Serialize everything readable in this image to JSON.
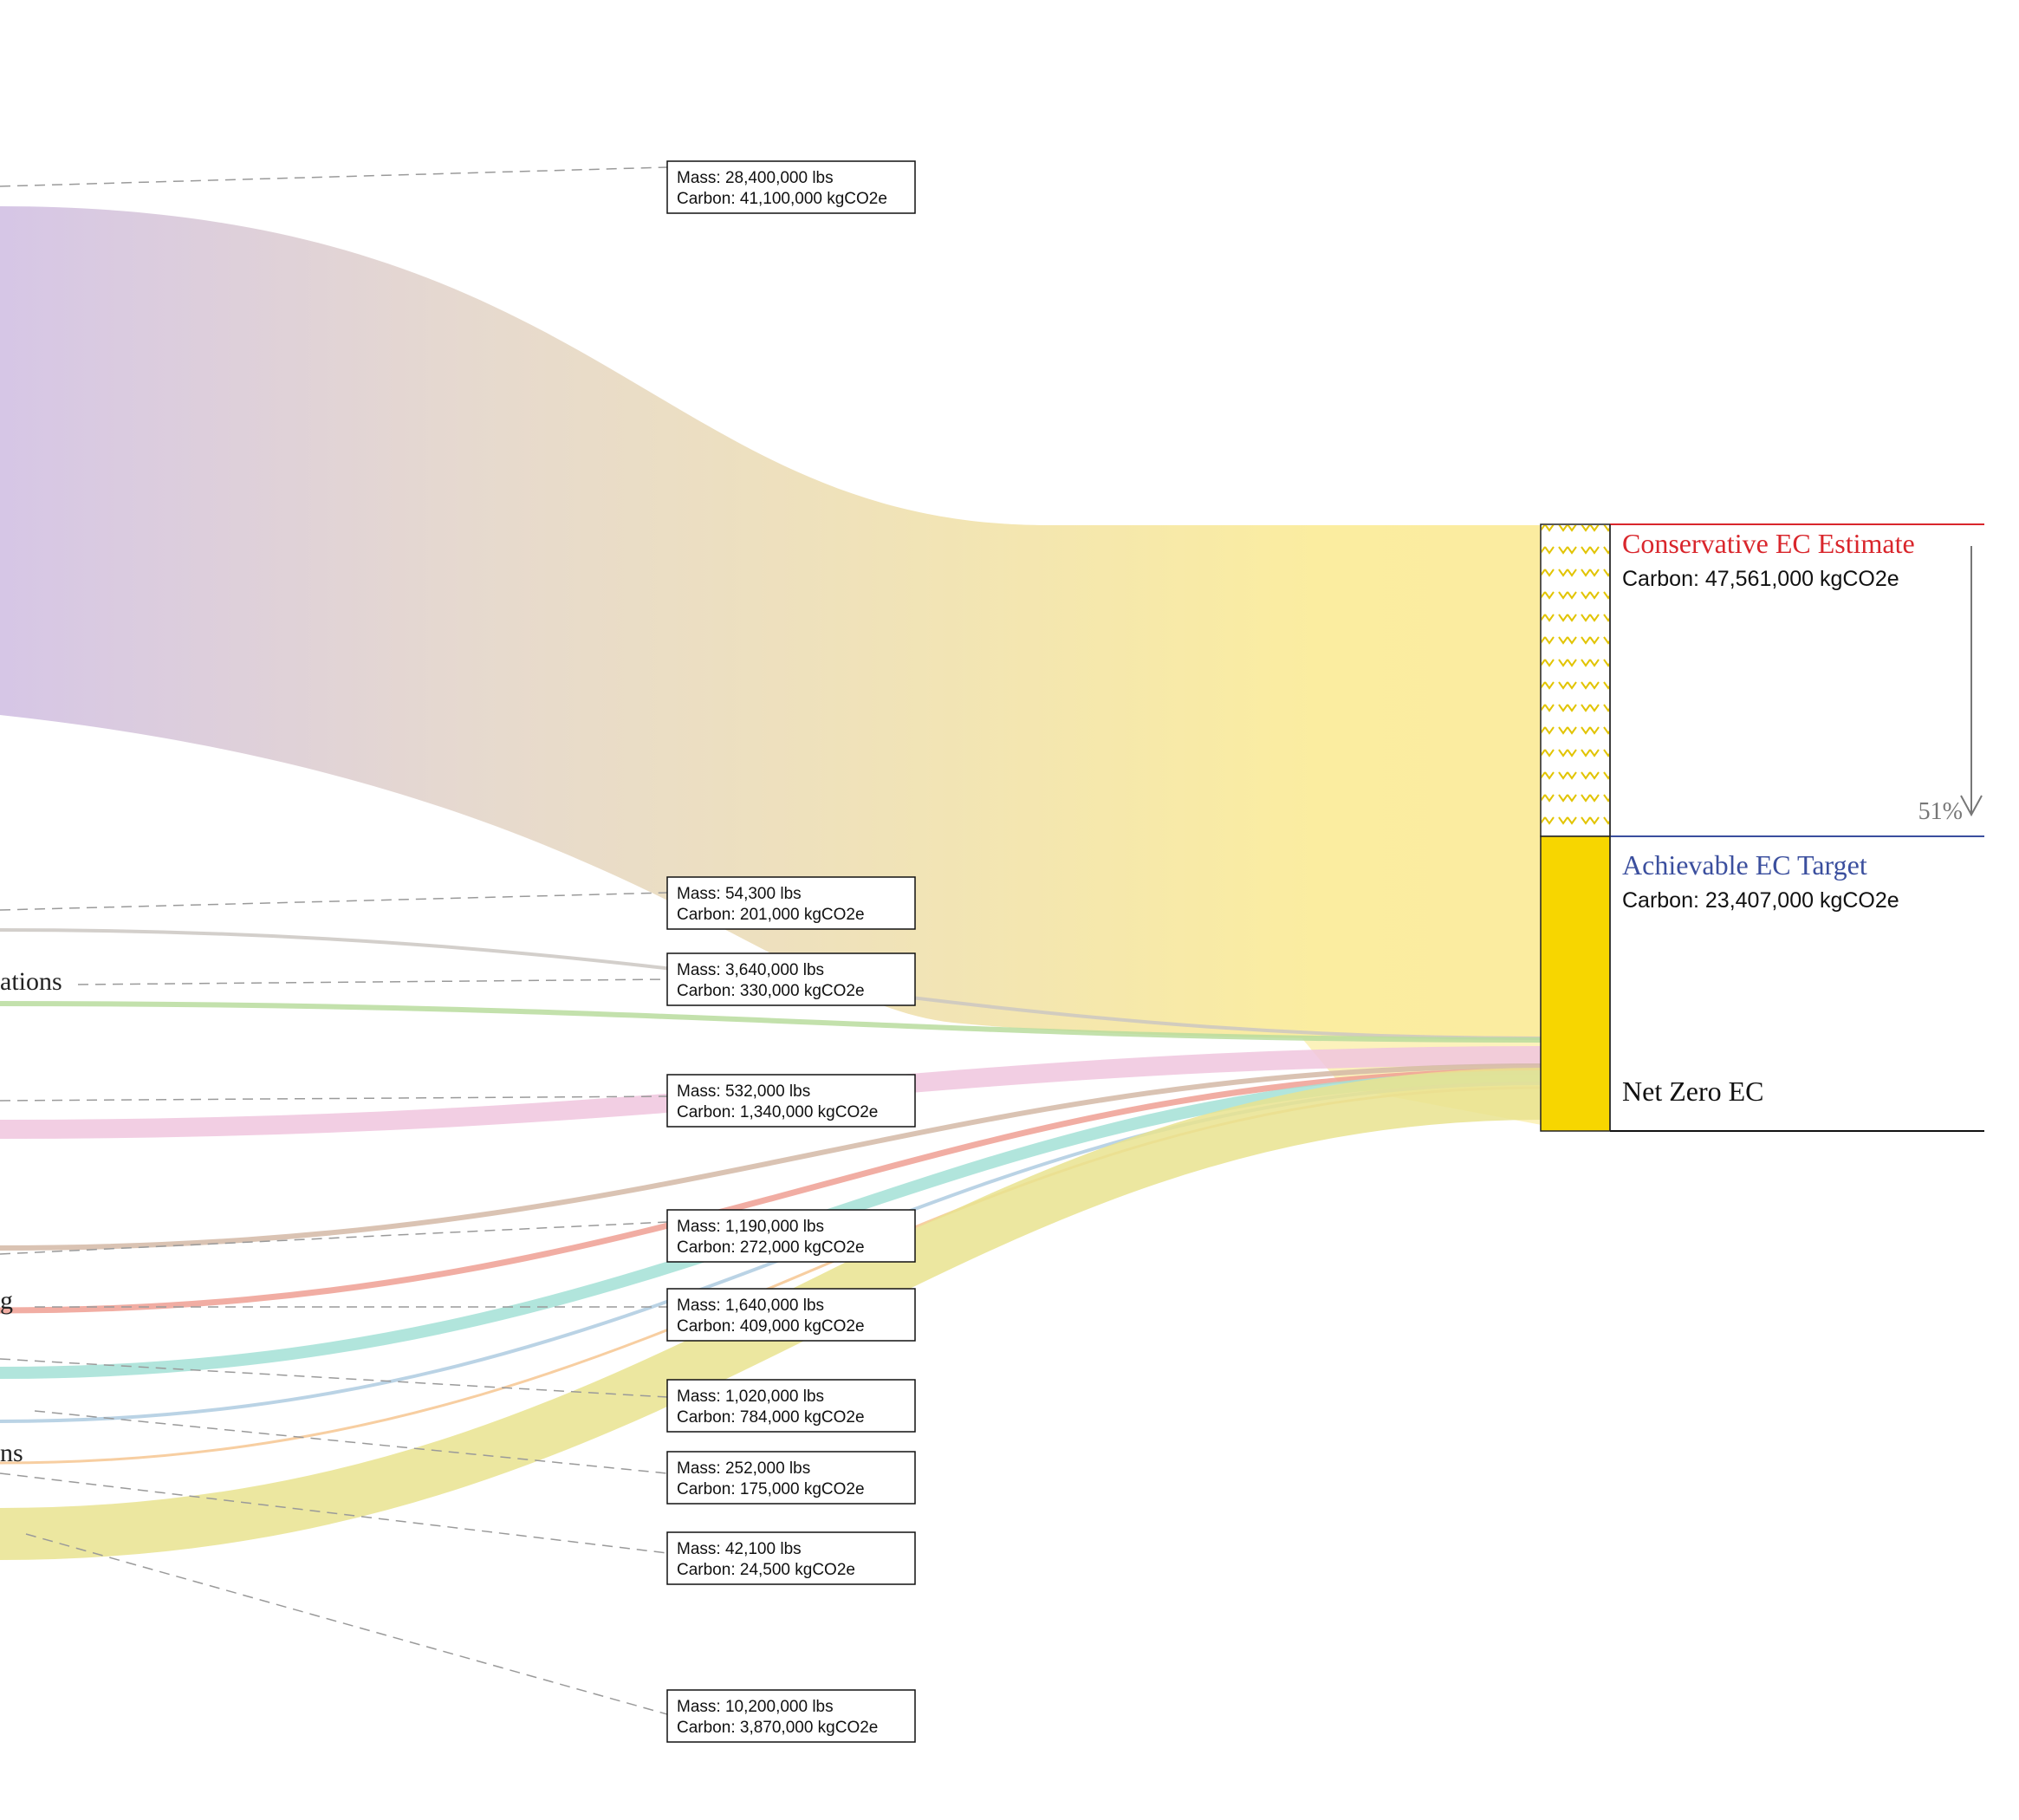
{
  "left_labels": [
    {
      "id": "cut-label-1",
      "text": "ations"
    },
    {
      "id": "cut-label-2",
      "text": "g"
    },
    {
      "id": "cut-label-3",
      "text": "ns"
    }
  ],
  "flows": [
    {
      "name": "flow-main",
      "color": "#d6c6e6",
      "thickness": 590,
      "mass": "Mass: 28,400,000 lbs",
      "carbon": "Carbon: 41,100,000 kgCO2e"
    },
    {
      "name": "flow-2",
      "color": "#cbc7c2",
      "thickness": 4,
      "mass": "Mass: 54,300 lbs",
      "carbon": "Carbon: 201,000 kgCO2e"
    },
    {
      "name": "flow-3",
      "color": "#b8dc9e",
      "thickness": 6,
      "mass": "Mass: 3,640,000 lbs",
      "carbon": "Carbon: 330,000 kgCO2e"
    },
    {
      "name": "flow-4",
      "color": "#f0c5de",
      "thickness": 22,
      "mass": "Mass: 532,000 lbs",
      "carbon": "Carbon: 1,340,000 kgCO2e"
    },
    {
      "name": "flow-5",
      "color": "#d4b8a6",
      "thickness": 6,
      "mass": "Mass: 1,190,000 lbs",
      "carbon": "Carbon: 272,000 kgCO2e"
    },
    {
      "name": "flow-6",
      "color": "#ef9f93",
      "thickness": 7,
      "mass": "Mass: 1,640,000 lbs",
      "carbon": "Carbon: 409,000 kgCO2e"
    },
    {
      "name": "flow-7",
      "color": "#a3e0d6",
      "thickness": 14,
      "mass": "Mass: 1,020,000 lbs",
      "carbon": "Carbon: 784,000 kgCO2e"
    },
    {
      "name": "flow-8",
      "color": "#aecbe0",
      "thickness": 4,
      "mass": "Mass: 252,000 lbs",
      "carbon": "Carbon: 175,000 kgCO2e"
    },
    {
      "name": "flow-9",
      "color": "#f6c590",
      "thickness": 3,
      "mass": "Mass: 42,100 lbs",
      "carbon": "Carbon: 24,500 kgCO2e"
    },
    {
      "name": "flow-10",
      "color": "#e9e38f",
      "thickness": 60,
      "mass": "Mass: 10,200,000 lbs",
      "carbon": "Carbon: 3,870,000 kgCO2e"
    }
  ],
  "targets": {
    "conservative": {
      "title": "Conservative EC Estimate",
      "carbon": "Carbon: 47,561,000 kgCO2e",
      "color": "#d9262c"
    },
    "achievable": {
      "title": "Achievable EC Target",
      "carbon": "Carbon: 23,407,000 kgCO2e",
      "color": "#3b4f9e"
    },
    "net_zero": {
      "title": "Net Zero EC"
    },
    "reduction": "51%",
    "accent_color": "#f7d600"
  }
}
